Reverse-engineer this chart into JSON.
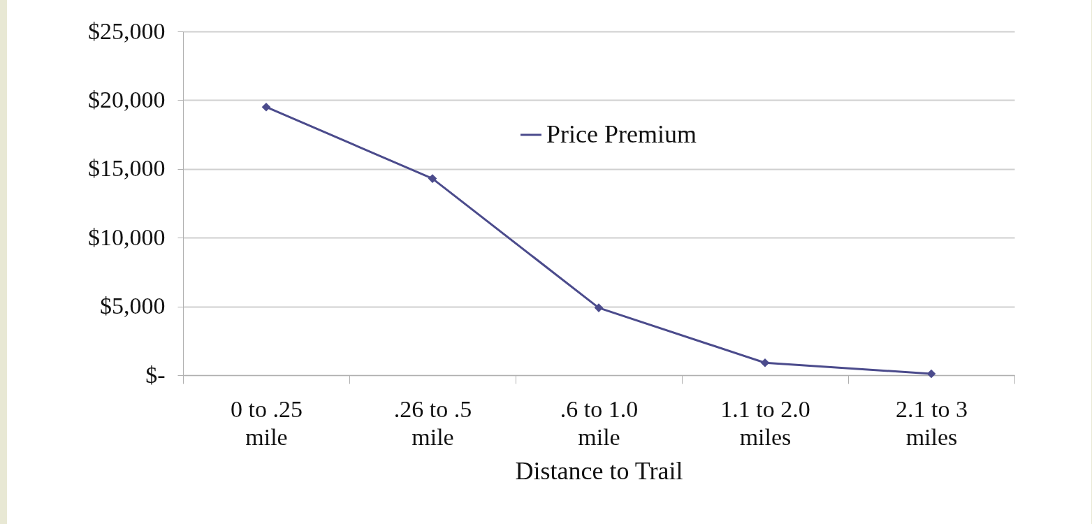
{
  "chart_data": {
    "type": "line",
    "xlabel": "Distance to Trail",
    "categories": [
      "0 to .25 mile",
      ".26 to .5 mile",
      ".6 to 1.0 mile",
      "1.1 to 2.0 miles",
      "2.1 to 3 miles"
    ],
    "series": [
      {
        "name": "Price Premium",
        "color": "#4b4b8c",
        "values": [
          19500,
          14300,
          4900,
          900,
          100
        ]
      }
    ],
    "ylim": [
      0,
      25000
    ],
    "yticks": [
      {
        "value": 0,
        "label": "$-"
      },
      {
        "value": 5000,
        "label": "$5,000"
      },
      {
        "value": 10000,
        "label": "$10,000"
      },
      {
        "value": 15000,
        "label": "$15,000"
      },
      {
        "value": 20000,
        "label": "$20,000"
      },
      {
        "value": 25000,
        "label": "$25,000"
      }
    ],
    "grid": "y",
    "legend": "top",
    "marker": "diamond",
    "line_style": "solid"
  }
}
